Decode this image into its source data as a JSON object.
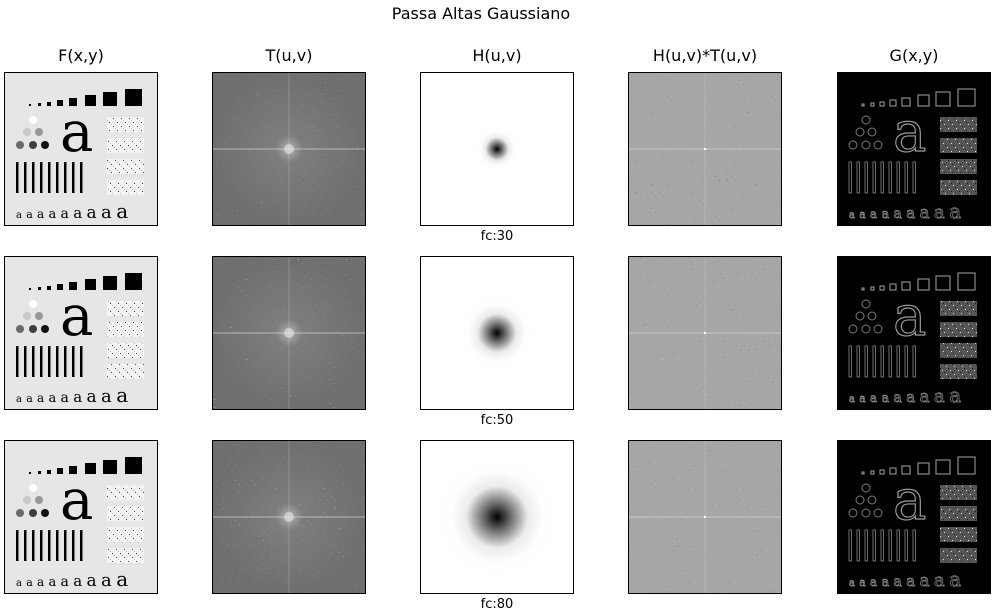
{
  "figure": {
    "title": "Passa Altas Gaussiano",
    "columns": [
      "F(x,y)",
      "T(u,v)",
      "H(u,v)",
      "H(u,v)*T(u,v)",
      "G(x,y)"
    ],
    "rows": [
      {
        "cutoff_label": "fc:30",
        "cutoff": 30
      },
      {
        "cutoff_label": "fc:50",
        "cutoff": 50
      },
      {
        "cutoff_label": "fc:80",
        "cutoff": 80
      }
    ],
    "test_pattern": {
      "glyph": "a",
      "colors": {
        "F_background": "#e6e6e6",
        "F_ink": "#000000",
        "G_background": "#000000",
        "spectrum_T": "#6f6f6f",
        "spectrum_HT": "#a6a6a6"
      }
    }
  }
}
